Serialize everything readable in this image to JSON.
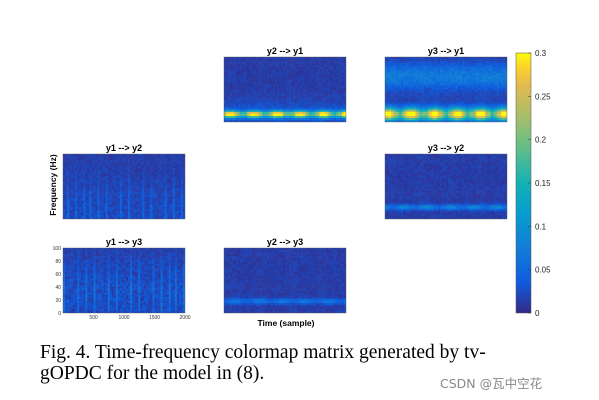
{
  "caption": {
    "line1": "Fig. 4. Time-frequency colormap matrix generated by tv-",
    "line2": "gOPDC for the model in (8)."
  },
  "watermark": "CSDN @瓦中空花",
  "chart_data": {
    "type": "heatmap",
    "colormap": "parula",
    "xlabel": "Time (sample)",
    "ylabel": "Frequency (Hz)",
    "xlim": [
      0,
      2000
    ],
    "ylim": [
      0,
      100
    ],
    "x_ticks": [
      "500",
      "1000",
      "1500",
      "2000"
    ],
    "y_ticks": [
      "100",
      "80",
      "60",
      "40",
      "20",
      "0"
    ],
    "colorbar": {
      "range": [
        0,
        0.3
      ],
      "ticks": [
        "0.3",
        "0.25",
        "0.2",
        "0.15",
        "0.1",
        "0.05",
        "0"
      ]
    },
    "panels": [
      {
        "title": "y2 --> y1",
        "row": 0,
        "col": 1,
        "peak_frequency_hz": 12,
        "peak_value": 0.3,
        "pattern": "strong band"
      },
      {
        "title": "y3 --> y1",
        "row": 0,
        "col": 2,
        "peak_frequency_hz": 12,
        "peak_value": 0.3,
        "pattern": "strong wide band"
      },
      {
        "title": "y1 --> y2",
        "row": 1,
        "col": 0,
        "peak_frequency_hz": 8,
        "peak_value": 0.06,
        "pattern": "weak scattered"
      },
      {
        "title": "y3 --> y2",
        "row": 1,
        "col": 2,
        "peak_frequency_hz": 18,
        "peak_value": 0.08,
        "pattern": "weak band"
      },
      {
        "title": "y1 --> y3",
        "row": 2,
        "col": 0,
        "peak_frequency_hz": 30,
        "peak_value": 0.08,
        "pattern": "weak scattered"
      },
      {
        "title": "y2 --> y3",
        "row": 2,
        "col": 1,
        "peak_frequency_hz": 18,
        "peak_value": 0.06,
        "pattern": "weak band"
      }
    ]
  }
}
